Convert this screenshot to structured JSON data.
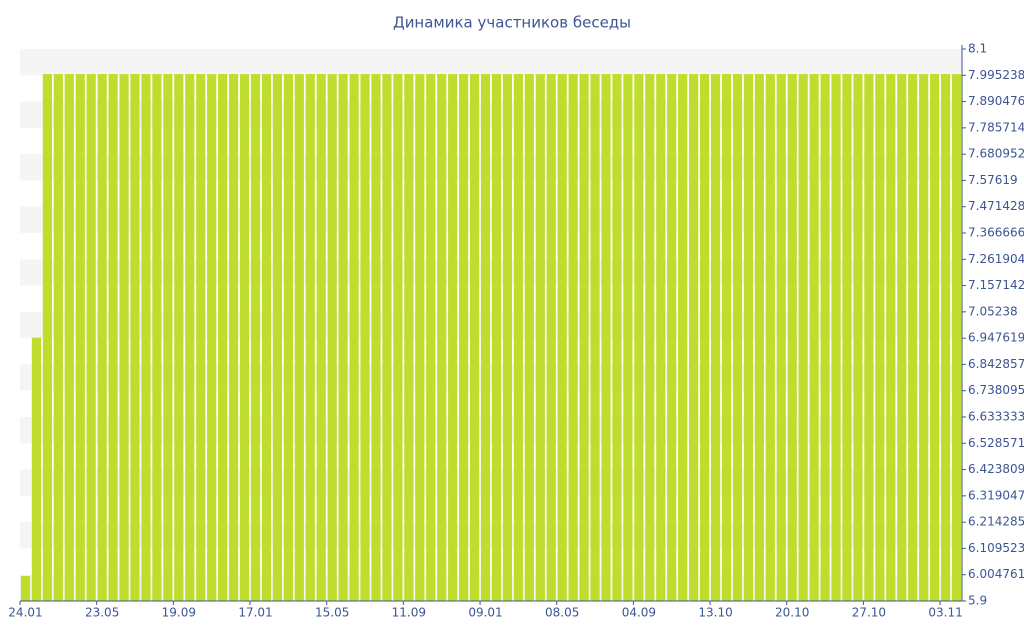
{
  "chart_data": {
    "type": "bar",
    "title": "Динамика участников беседы",
    "categories": [
      "24.01",
      null,
      null,
      null,
      null,
      null,
      null,
      "23.05",
      null,
      null,
      null,
      null,
      null,
      null,
      "19.09",
      null,
      null,
      null,
      null,
      null,
      null,
      "17.01",
      null,
      null,
      null,
      null,
      null,
      null,
      "15.05",
      null,
      null,
      null,
      null,
      null,
      null,
      "11.09",
      null,
      null,
      null,
      null,
      null,
      null,
      "09.01",
      null,
      null,
      null,
      null,
      null,
      null,
      "08.05",
      null,
      null,
      null,
      null,
      null,
      null,
      "04.09",
      null,
      null,
      null,
      null,
      null,
      null,
      "13.10",
      null,
      null,
      null,
      null,
      null,
      null,
      "20.10",
      null,
      null,
      null,
      null,
      null,
      null,
      "27.10",
      null,
      null,
      null,
      null,
      null,
      null,
      "03.11",
      null
    ],
    "values": [
      6,
      6.95,
      8,
      8,
      8,
      8,
      8,
      8,
      8,
      8,
      8,
      8,
      8,
      8,
      8,
      8,
      8,
      8,
      8,
      8,
      8,
      8,
      8,
      8,
      8,
      8,
      8,
      8,
      8,
      8,
      8,
      8,
      8,
      8,
      8,
      8,
      8,
      8,
      8,
      8,
      8,
      8,
      8,
      8,
      8,
      8,
      8,
      8,
      8,
      8,
      8,
      8,
      8,
      8,
      8,
      8,
      8,
      8,
      8,
      8,
      8,
      8,
      8,
      8,
      8,
      8,
      8,
      8,
      8,
      8,
      8,
      8,
      8,
      8,
      8,
      8,
      8,
      8,
      8,
      8,
      8,
      8,
      8,
      8,
      8,
      8
    ],
    "color": "#bfdd2d",
    "ylim": [
      5.9,
      8.1
    ],
    "yticks": [
      5.9,
      6.004761,
      6.109523,
      6.214285,
      6.319047,
      6.423809,
      6.528571,
      6.633333,
      6.738095,
      6.842857,
      6.947619,
      7.05238,
      7.157142,
      7.261904,
      7.366666,
      7.471428,
      7.57619,
      7.680952,
      7.785714,
      7.890476,
      7.995238,
      8.1
    ],
    "banded_background": true
  }
}
